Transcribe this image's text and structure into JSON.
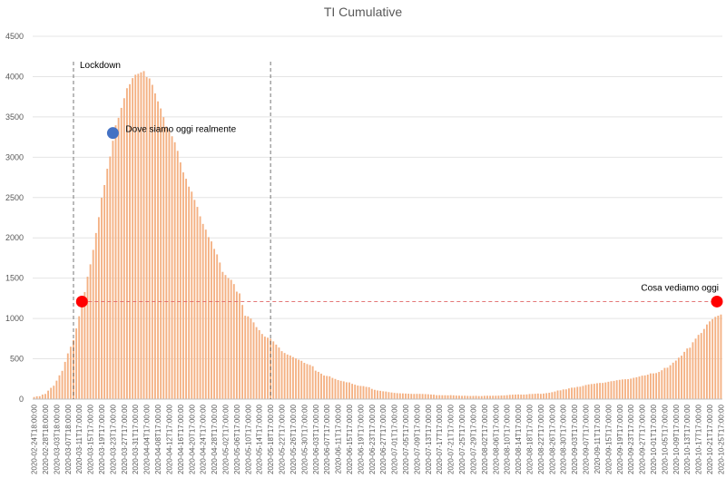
{
  "chart_data": {
    "type": "bar",
    "title": "TI Cumulative",
    "categories": [
      "2020-02-24T18:00:00",
      null,
      null,
      null,
      "2020-02-28T18:00:00",
      null,
      null,
      null,
      "2020-03-03T18:00:00",
      null,
      null,
      null,
      "2020-03-07T18:00:00",
      null,
      null,
      null,
      "2020-03-11T17:00:00",
      null,
      null,
      null,
      "2020-03-15T17:00:00",
      null,
      null,
      null,
      "2020-03-19T17:00:00",
      null,
      null,
      null,
      "2020-03-23T17:00:00",
      null,
      null,
      null,
      "2020-03-27T17:00:00",
      null,
      null,
      null,
      "2020-03-31T17:00:00",
      null,
      null,
      null,
      "2020-04-04T17:00:00",
      null,
      null,
      null,
      "2020-04-08T17:00:00",
      null,
      null,
      null,
      "2020-04-12T17:00:00",
      null,
      null,
      null,
      "2020-04-16T17:00:00",
      null,
      null,
      null,
      "2020-04-20T17:00:00",
      null,
      null,
      null,
      "2020-04-24T17:00:00",
      null,
      null,
      null,
      "2020-04-28T17:00:00",
      null,
      null,
      null,
      "2020-05-02T17:00:00",
      null,
      null,
      null,
      "2020-05-06T17:00:00",
      null,
      null,
      null,
      "2020-05-10T17:00:00",
      null,
      null,
      null,
      "2020-05-14T17:00:00",
      null,
      null,
      null,
      "2020-05-18T17:00:00",
      null,
      null,
      null,
      "2020-05-22T17:00:00",
      null,
      null,
      null,
      "2020-05-26T17:00:00",
      null,
      null,
      null,
      "2020-05-30T17:00:00",
      null,
      null,
      null,
      "2020-06-03T17:00:00",
      null,
      null,
      null,
      "2020-06-07T17:00:00",
      null,
      null,
      null,
      "2020-06-11T17:00:00",
      null,
      null,
      null,
      "2020-06-15T17:00:00",
      null,
      null,
      null,
      "2020-06-19T17:00:00",
      null,
      null,
      null,
      "2020-06-23T17:00:00",
      null,
      null,
      null,
      "2020-06-27T17:00:00",
      null,
      null,
      null,
      "2020-07-01T17:00:00",
      null,
      null,
      null,
      "2020-07-05T17:00:00",
      null,
      null,
      null,
      "2020-07-09T17:00:00",
      null,
      null,
      null,
      "2020-07-13T17:00:00",
      null,
      null,
      null,
      "2020-07-17T17:00:00",
      null,
      null,
      null,
      "2020-07-21T17:00:00",
      null,
      null,
      null,
      "2020-07-25T17:00:00",
      null,
      null,
      null,
      "2020-07-29T17:00:00",
      null,
      null,
      null,
      "2020-08-02T17:00:00",
      null,
      null,
      null,
      "2020-08-06T17:00:00",
      null,
      null,
      null,
      "2020-08-10T17:00:00",
      null,
      null,
      null,
      "2020-08-14T17:00:00",
      null,
      null,
      null,
      "2020-08-18T17:00:00",
      null,
      null,
      null,
      "2020-08-22T17:00:00",
      null,
      null,
      null,
      "2020-08-26T17:00:00",
      null,
      null,
      null,
      "2020-08-30T17:00:00",
      null,
      null,
      null,
      "2020-09-03T17:00:00",
      null,
      null,
      null,
      "2020-09-07T17:00:00",
      null,
      null,
      null,
      "2020-09-11T17:00:00",
      null,
      null,
      null,
      "2020-09-15T17:00:00",
      null,
      null,
      null,
      "2020-09-19T17:00:00",
      null,
      null,
      null,
      "2020-09-23T17:00:00",
      null,
      null,
      null,
      "2020-09-27T17:00:00",
      null,
      null,
      null,
      "2020-10-01T17:00:00",
      null,
      null,
      null,
      "2020-10-05T17:00:00",
      null,
      null,
      null,
      "2020-10-09T17:00:00",
      null,
      null,
      null,
      "2020-10-13T17:00:00",
      null,
      null,
      null,
      "2020-10-17T17:00:00",
      null,
      null,
      null,
      "2020-10-21T17:00:00",
      null,
      null,
      null,
      "2020-10-25T17:00:00"
    ],
    "values": [
      26,
      35,
      36,
      56,
      64,
      105,
      140,
      166,
      229,
      295,
      351,
      462,
      567,
      650,
      733,
      877,
      1028,
      1153,
      1328,
      1518,
      1672,
      1851,
      2060,
      2257,
      2498,
      2655,
      2857,
      3009,
      3204,
      3396,
      3489,
      3612,
      3732,
      3856,
      3906,
      3981,
      4023,
      4035,
      4053,
      4068,
      3994,
      3977,
      3898,
      3792,
      3693,
      3605,
      3497,
      3381,
      3343,
      3260,
      3186,
      3079,
      2936,
      2812,
      2733,
      2635,
      2573,
      2471,
      2384,
      2267,
      2173,
      2102,
      2009,
      1956,
      1863,
      1795,
      1694,
      1578,
      1539,
      1501,
      1479,
      1427,
      1333,
      1311,
      1168,
      1034,
      1027,
      999,
      952,
      893,
      855,
      808,
      775,
      762,
      749,
      716,
      676,
      640,
      595,
      572,
      553,
      541,
      521,
      505,
      489,
      475,
      450,
      435,
      424,
      408,
      353,
      338,
      316,
      293,
      287,
      283,
      263,
      250,
      236,
      227,
      220,
      209,
      207,
      190,
      179,
      168,
      163,
      161,
      152,
      148,
      127,
      115,
      107,
      103,
      97,
      94,
      87,
      82,
      77,
      74,
      72,
      71,
      69,
      67,
      65,
      64,
      65,
      65,
      64,
      62,
      60,
      57,
      55,
      49,
      49,
      48,
      48,
      47,
      49,
      47,
      44,
      43,
      41,
      42,
      40,
      39,
      40,
      41,
      38,
      38,
      41,
      42,
      41,
      42,
      42,
      43,
      45,
      46,
      49,
      53,
      55,
      56,
      58,
      56,
      56,
      58,
      63,
      64,
      66,
      69,
      65,
      69,
      74,
      79,
      86,
      94,
      107,
      109,
      120,
      121,
      133,
      142,
      143,
      152,
      154,
      164,
      175,
      182,
      187,
      190,
      197,
      201,
      201,
      207,
      215,
      222,
      226,
      234,
      239,
      244,
      246,
      247,
      254,
      264,
      271,
      280,
      291,
      294,
      303,
      319,
      319,
      323,
      337,
      358,
      387,
      390,
      420,
      452,
      478,
      514,
      539,
      586,
      628,
      638,
      705,
      750,
      797,
      820,
      870,
      926,
      964,
      992,
      1020,
      1035,
      1049
    ],
    "color": "#f4b183",
    "ylim": [
      0,
      4500
    ],
    "yticks": [
      0,
      500,
      1000,
      1500,
      2000,
      2500,
      3000,
      3500,
      4000,
      4500
    ],
    "grid": true,
    "vlines": [
      {
        "x": 14,
        "label": "Lockdown"
      },
      {
        "x": 84
      }
    ],
    "ref_line": {
      "y": 1210,
      "color": "#e06666"
    },
    "points": [
      {
        "x": 17,
        "y": 1210,
        "color": "#ff0000"
      },
      {
        "x": 28,
        "y": 3300,
        "color": "#4472c4",
        "label": "Dove siamo oggi realmente"
      },
      {
        "x": 244,
        "y": 1210,
        "color": "#ff0000",
        "label": "Cosa vediamo oggi"
      }
    ]
  }
}
